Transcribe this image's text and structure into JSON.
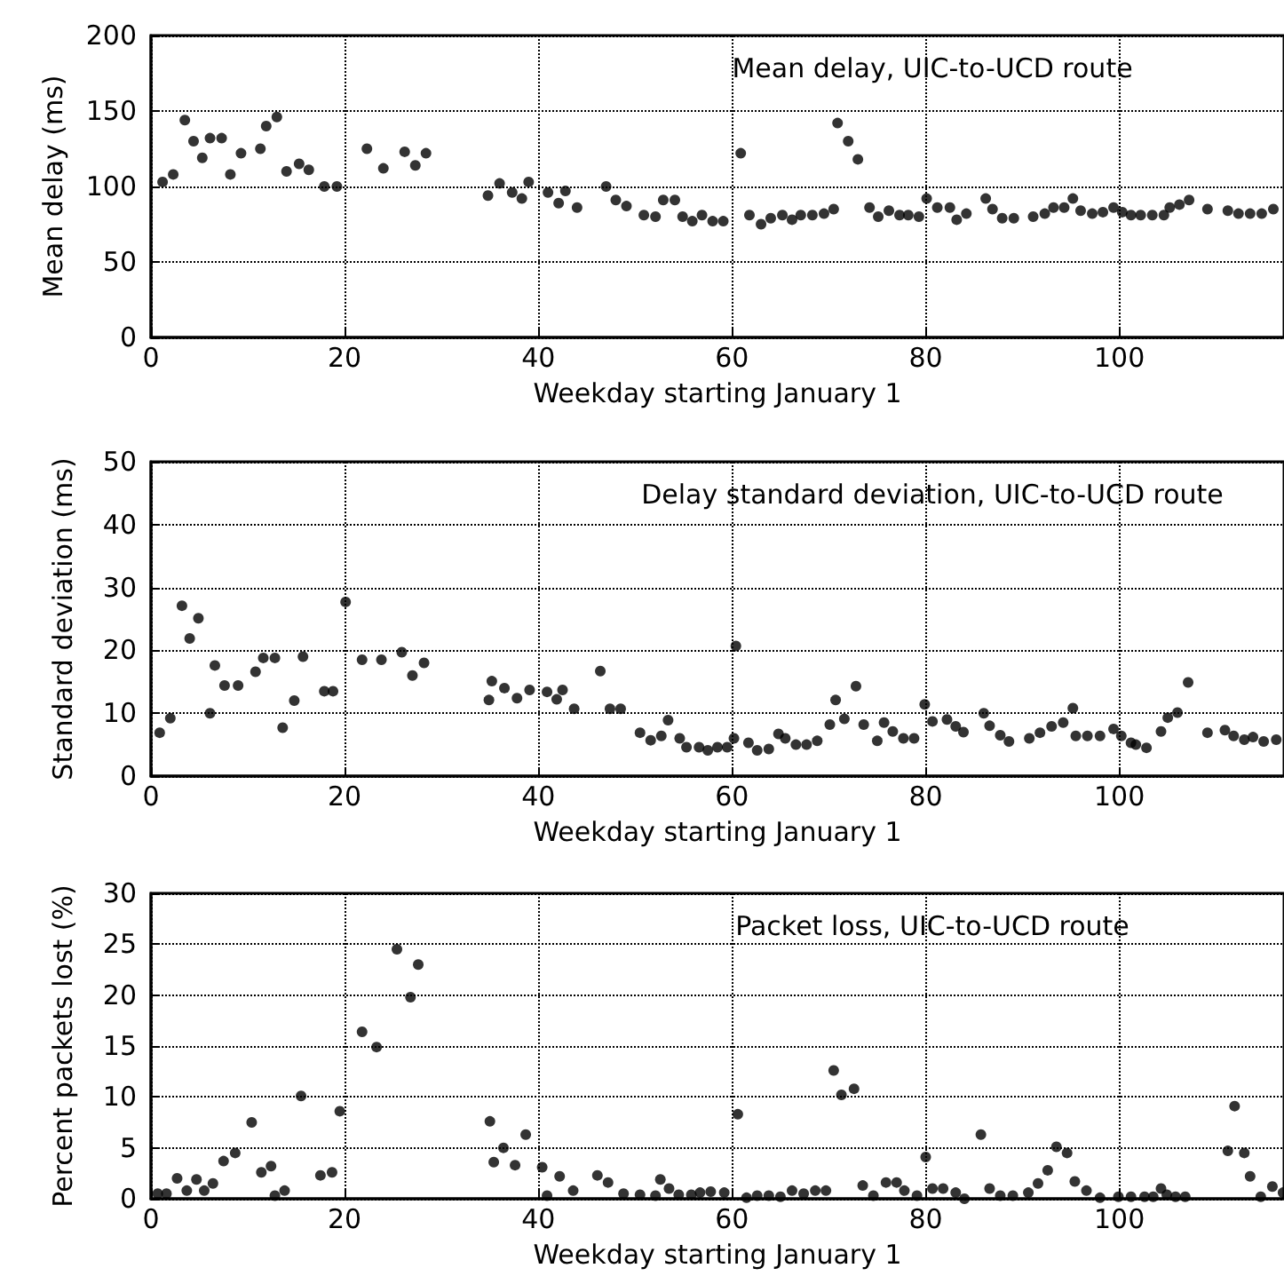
{
  "chart_data": [
    {
      "type": "scatter",
      "title": "Mean delay, UIC-to-UCD route",
      "xlabel": "Weekday starting January 1",
      "ylabel": "Mean delay (ms)",
      "xlim": [
        0,
        117
      ],
      "xticks": [
        0,
        20,
        40,
        60,
        80,
        100
      ],
      "ylim": [
        0,
        200
      ],
      "yticks": [
        0,
        50,
        100,
        150,
        200
      ],
      "grid": true,
      "marker": "circle",
      "color": "#000000",
      "x": [
        1.2,
        2.3,
        3.5,
        4.4,
        5.3,
        6.1,
        7.3,
        8.2,
        9.3,
        11.3,
        11.9,
        13,
        14,
        15.3,
        16.3,
        17.9,
        19.2,
        22.3,
        24,
        26.2,
        27.3,
        28.4,
        34.8,
        36,
        37.3,
        38.3,
        39,
        41,
        42.1,
        42.8,
        44,
        47,
        48,
        49.1,
        50.9,
        52.1,
        52.9,
        54.1,
        54.9,
        55.9,
        56.9,
        58,
        59.1,
        60.9,
        61.8,
        63,
        64,
        65.2,
        66.2,
        67.1,
        68.3,
        69.5,
        70.5,
        70.9,
        72,
        73,
        74.2,
        75.1,
        76.2,
        77.3,
        78.2,
        79.3,
        80.1,
        81.2,
        82.5,
        83.2,
        84.2,
        86.2,
        86.9,
        87.9,
        89.1,
        91.1,
        92.3,
        93.2,
        94.3,
        95.2,
        96,
        97.2,
        98.3,
        99.4,
        100.3,
        101.2,
        102.2,
        103.4,
        104.6,
        105.2,
        106.2,
        107.2,
        109.1,
        111.2,
        112.3,
        113.5,
        114.7,
        115.9
      ],
      "values": [
        103,
        108,
        144,
        130,
        119,
        132,
        132,
        108,
        122,
        125,
        140,
        146,
        110,
        115,
        111,
        100,
        100,
        125,
        112,
        123,
        114,
        122,
        94,
        102,
        96,
        92,
        103,
        96,
        89,
        97,
        86,
        100,
        91,
        87,
        81,
        80,
        91,
        91,
        80,
        77,
        81,
        77,
        77,
        122,
        81,
        75,
        79,
        81,
        78,
        81,
        81,
        82,
        85,
        142,
        130,
        118,
        86,
        80,
        84,
        81,
        81,
        80,
        92,
        86,
        86,
        78,
        82,
        92,
        85,
        79,
        79,
        80,
        82,
        86,
        86,
        92,
        84,
        82,
        83,
        86,
        83,
        81,
        81,
        81,
        81,
        86,
        88,
        91,
        85,
        84,
        82,
        82,
        82,
        85
      ]
    },
    {
      "type": "scatter",
      "title": "Delay standard deviation, UIC-to-UCD route",
      "xlabel": "Weekday starting January 1",
      "ylabel": "Standard deviation (ms)",
      "xlim": [
        0,
        117
      ],
      "xticks": [
        0,
        20,
        40,
        60,
        80,
        100
      ],
      "ylim": [
        0,
        50
      ],
      "yticks": [
        0,
        10,
        20,
        30,
        40,
        50
      ],
      "grid": true,
      "marker": "circle",
      "color": "#000000",
      "x": [
        0.9,
        2,
        3.2,
        4,
        4.9,
        6.1,
        6.6,
        7.6,
        9,
        10.8,
        11.6,
        12.8,
        13.6,
        14.8,
        15.7,
        17.9,
        18.8,
        20.1,
        21.8,
        23.8,
        25.9,
        27,
        28.2,
        34.9,
        35.2,
        36.5,
        37.8,
        39.1,
        40.9,
        41.9,
        42.5,
        43.7,
        46.4,
        47.4,
        48.5,
        50.5,
        51.6,
        52.7,
        53.4,
        54.6,
        55.3,
        56.6,
        57.5,
        58.5,
        59.5,
        60.2,
        60.4,
        61.7,
        62.6,
        63.8,
        64.8,
        65.5,
        66.6,
        67.7,
        68.8,
        70.1,
        70.7,
        71.6,
        72.8,
        73.6,
        75,
        75.7,
        76.6,
        77.7,
        78.8,
        79.9,
        80.7,
        82.2,
        83.1,
        83.9,
        86,
        86.6,
        87.7,
        88.6,
        90.7,
        91.8,
        93,
        94.2,
        95.2,
        95.5,
        96.7,
        98,
        99.4,
        100.2,
        101.2,
        101.7,
        102.8,
        104.3,
        105,
        106,
        107.1,
        109.1,
        110.9,
        111.8,
        112.9,
        113.8,
        114.9,
        116.2
      ],
      "values": [
        6.9,
        9.2,
        27.1,
        21.9,
        25.1,
        10,
        17.6,
        14.4,
        14.4,
        16.6,
        18.8,
        18.8,
        7.7,
        12,
        19,
        13.5,
        13.5,
        27.7,
        18.5,
        18.5,
        19.7,
        16,
        18,
        12.1,
        15.1,
        14,
        12.4,
        13.7,
        13.4,
        12.2,
        13.7,
        10.7,
        16.7,
        10.7,
        10.7,
        6.9,
        5.7,
        6.4,
        8.9,
        6,
        4.6,
        4.6,
        4.1,
        4.6,
        4.6,
        6,
        20.7,
        5.3,
        4.1,
        4.3,
        6.7,
        6,
        5,
        5,
        5.6,
        8.2,
        12.1,
        9.1,
        14.3,
        8.2,
        5.6,
        8.5,
        7.1,
        6,
        6,
        11.4,
        8.7,
        9,
        7.9,
        7,
        10,
        8,
        6.5,
        5.5,
        6,
        6.9,
        7.9,
        8.5,
        10.8,
        6.4,
        6.4,
        6.4,
        7.5,
        6.4,
        5.3,
        5,
        4.5,
        7.1,
        9.3,
        10.1,
        14.9,
        6.9,
        7.3,
        6.4,
        5.8,
        6.2,
        5.5,
        5.8
      ]
    },
    {
      "type": "scatter",
      "title": "Packet loss, UIC-to-UCD route",
      "xlabel": "Weekday starting January 1",
      "ylabel": "Percent packets lost (%)",
      "xlim": [
        0,
        117
      ],
      "xticks": [
        0,
        20,
        40,
        60,
        80,
        100
      ],
      "ylim": [
        0,
        30
      ],
      "yticks": [
        0,
        5,
        10,
        15,
        20,
        25,
        30
      ],
      "grid": true,
      "marker": "circle",
      "color": "#000000",
      "x": [
        0.7,
        1.6,
        2.7,
        3.7,
        4.7,
        5.5,
        6.4,
        7.5,
        8.7,
        10.4,
        11.4,
        12.4,
        12.8,
        13.8,
        15.5,
        17.5,
        18.7,
        19.5,
        21.8,
        23.3,
        25.4,
        26.8,
        27.6,
        35,
        35.4,
        36.4,
        37.6,
        38.7,
        40.4,
        40.9,
        42.2,
        43.6,
        46.1,
        47.2,
        48.8,
        50.5,
        52.1,
        52.6,
        53.5,
        54.5,
        55.8,
        56.7,
        57.8,
        59.2,
        60.6,
        61.5,
        62.6,
        63.8,
        65,
        66.2,
        67.4,
        68.6,
        69.7,
        70.5,
        71.3,
        72.6,
        73.5,
        74.6,
        75.9,
        77,
        77.8,
        79.1,
        80,
        80.7,
        81.8,
        83.1,
        84,
        85.7,
        86.6,
        87.7,
        89,
        90.6,
        91.6,
        92.6,
        93.5,
        94.6,
        95.4,
        96.6,
        98,
        99.9,
        101.2,
        102.6,
        103.5,
        104.3,
        104.9,
        105.8,
        106.8,
        111.2,
        111.9,
        112.9,
        113.5,
        114.6,
        115.8,
        116.9
      ],
      "values": [
        0.5,
        0.5,
        2,
        0.8,
        1.9,
        0.8,
        1.5,
        3.7,
        4.5,
        7.5,
        2.6,
        3.2,
        0.3,
        0.8,
        10.1,
        2.3,
        2.6,
        8.6,
        16.4,
        14.9,
        24.5,
        19.8,
        23,
        7.6,
        3.6,
        5,
        3.3,
        6.3,
        3.1,
        0.3,
        2.2,
        0.8,
        2.3,
        1.6,
        0.5,
        0.4,
        0.3,
        1.9,
        1,
        0.4,
        0.4,
        0.6,
        0.7,
        0.6,
        8.3,
        0.1,
        0.3,
        0.3,
        0.2,
        0.8,
        0.5,
        0.8,
        0.8,
        12.6,
        10.2,
        10.8,
        1.3,
        0.3,
        1.6,
        1.6,
        0.8,
        0.3,
        4.1,
        1,
        1,
        0.6,
        0,
        6.3,
        1,
        0.3,
        0.3,
        0.6,
        1.5,
        2.8,
        5.1,
        4.5,
        1.7,
        0.8,
        0.1,
        0.2,
        0.2,
        0.2,
        0.2,
        1,
        0.4,
        0.2,
        0.2,
        4.7,
        9.1,
        4.5,
        2.2,
        0.2,
        1.2,
        0.6
      ]
    }
  ]
}
